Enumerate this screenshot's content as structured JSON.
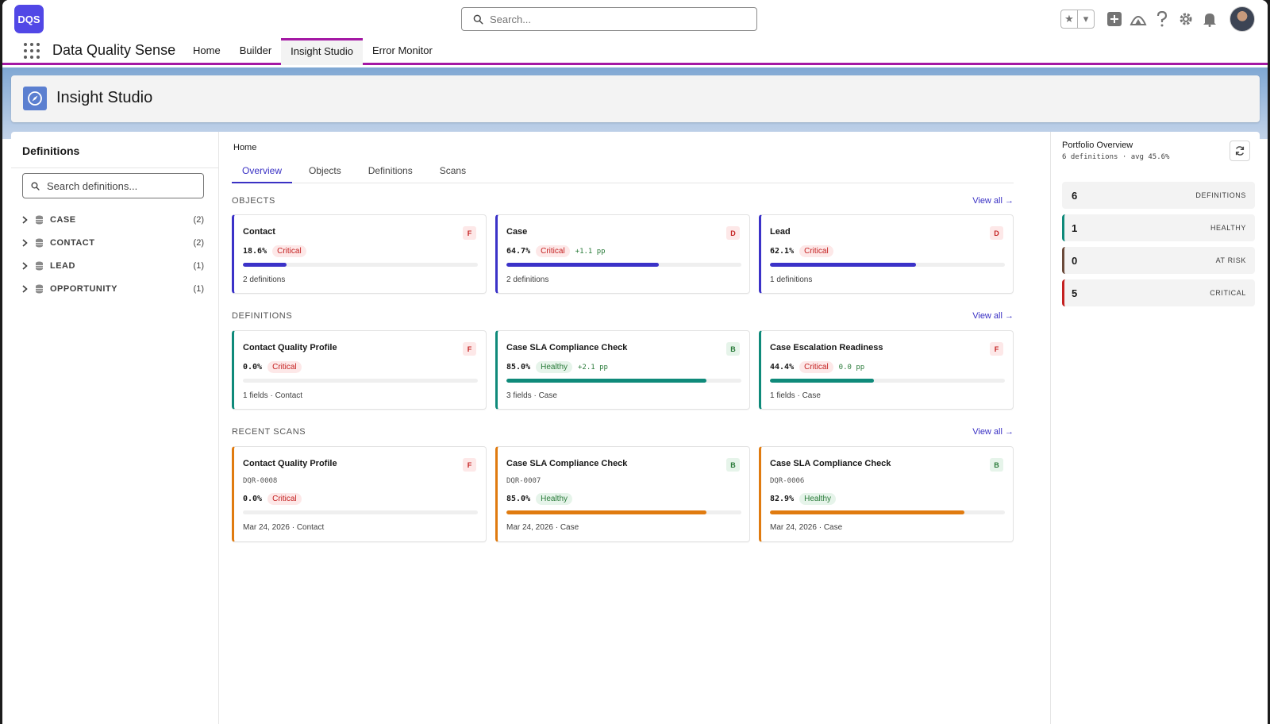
{
  "app": {
    "logo": "DQS",
    "name": "Data Quality Sense"
  },
  "global_search": {
    "placeholder": "Search..."
  },
  "nav": {
    "items": [
      "Home",
      "Builder",
      "Insight Studio",
      "Error Monitor"
    ],
    "active": "Insight Studio"
  },
  "page_header": {
    "title": "Insight Studio",
    "icon": "compass-icon"
  },
  "left_panel": {
    "title": "Definitions",
    "search_placeholder": "Search definitions...",
    "tree": [
      {
        "label": "CASE",
        "count": "(2)"
      },
      {
        "label": "CONTACT",
        "count": "(2)"
      },
      {
        "label": "LEAD",
        "count": "(1)"
      },
      {
        "label": "OPPORTUNITY",
        "count": "(1)"
      }
    ]
  },
  "center": {
    "breadcrumb": "Home",
    "tabs": [
      "Overview",
      "Objects",
      "Definitions",
      "Scans"
    ],
    "active_tab": "Overview",
    "sections": {
      "objects": {
        "title": "OBJECTS",
        "link": "View all →",
        "cards": [
          {
            "title": "Contact",
            "grade": "F",
            "pct": "18.6%",
            "status": "Critical",
            "delta": "",
            "progress": 0.186,
            "footer": "2 definitions"
          },
          {
            "title": "Case",
            "grade": "D",
            "pct": "64.7%",
            "status": "Critical",
            "delta": "+1.1 pp",
            "progress": 0.647,
            "footer": "2 definitions"
          },
          {
            "title": "Lead",
            "grade": "D",
            "pct": "62.1%",
            "status": "Critical",
            "delta": "",
            "progress": 0.621,
            "footer": "1 definitions"
          }
        ]
      },
      "definitions": {
        "title": "DEFINITIONS",
        "link": "View all →",
        "cards": [
          {
            "title": "Contact Quality Profile",
            "grade": "F",
            "pct": "0.0%",
            "status": "Critical",
            "delta": "",
            "progress": 0.0,
            "footer": "1 fields · Contact"
          },
          {
            "title": "Case SLA Compliance Check",
            "grade": "B",
            "pct": "85.0%",
            "status": "Healthy",
            "delta": "+2.1 pp",
            "progress": 0.85,
            "footer": "3 fields · Case"
          },
          {
            "title": "Case Escalation Readiness",
            "grade": "F",
            "pct": "44.4%",
            "status": "Critical",
            "delta": "0.0 pp",
            "progress": 0.444,
            "footer": "1 fields · Case"
          }
        ]
      },
      "scans": {
        "title": "RECENT SCANS",
        "link": "View all →",
        "cards": [
          {
            "title": "Contact Quality Profile",
            "id": "DQR-0008",
            "grade": "F",
            "pct": "0.0%",
            "status": "Critical",
            "progress": 0.0,
            "footer": "Mar 24, 2026 · Contact"
          },
          {
            "title": "Case SLA Compliance Check",
            "id": "DQR-0007",
            "grade": "B",
            "pct": "85.0%",
            "status": "Healthy",
            "progress": 0.85,
            "footer": "Mar 24, 2026 · Case"
          },
          {
            "title": "Case SLA Compliance Check",
            "id": "DQR-0006",
            "grade": "B",
            "pct": "82.9%",
            "status": "Healthy",
            "progress": 0.829,
            "footer": "Mar 24, 2026 · Case"
          }
        ]
      }
    }
  },
  "right_panel": {
    "title": "Portfolio Overview",
    "subtitle": "6 definitions · avg 45.6%",
    "stats": [
      {
        "value": "6",
        "label": "DEFINITIONS"
      },
      {
        "value": "1",
        "label": "HEALTHY"
      },
      {
        "value": "0",
        "label": "AT RISK"
      },
      {
        "value": "5",
        "label": "CRITICAL"
      }
    ]
  },
  "colors": {
    "brand": "#5147e6",
    "nav_accent": "#a418a4",
    "link": "#3a31c4",
    "object_accent": "#3b32c8",
    "definition_accent": "#0f8a7a",
    "scan_accent": "#e07b10",
    "critical": "#c42121",
    "healthy": "#2a7b3a"
  }
}
